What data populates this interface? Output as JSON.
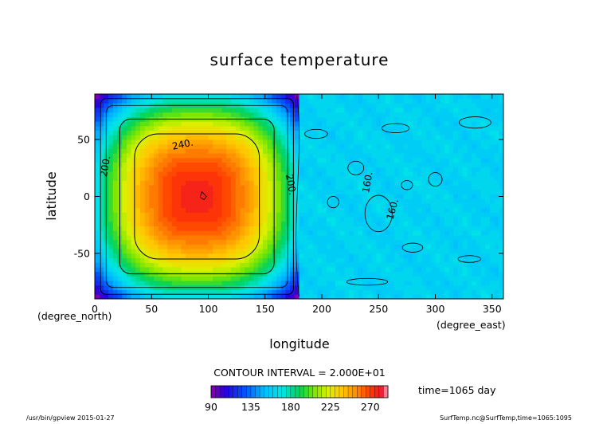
{
  "chart_data": {
    "type": "heatmap",
    "title": "surface temperature",
    "xlabel": "longitude",
    "ylabel": "latitude",
    "x_units": "(degree_east)",
    "y_units": "(degree_north)",
    "xlim": [
      0,
      360
    ],
    "ylim": [
      -90,
      90
    ],
    "x_ticks": [
      "0",
      "50",
      "100",
      "150",
      "200",
      "250",
      "300",
      "350"
    ],
    "y_ticks": [
      "50",
      "0",
      "-50"
    ],
    "contour_interval_text": "CONTOUR INTERVAL = 2.000E+01",
    "contour_labels": [
      "240.",
      "200.",
      "200.",
      "160.",
      "160."
    ],
    "colorbar": {
      "min": 90,
      "max": 290,
      "step": 5,
      "tick_labels": [
        "90",
        "135",
        "180",
        "225",
        "270"
      ]
    },
    "field": {
      "continent_lon_range": [
        0,
        180
      ],
      "hot_center": {
        "lon": 90,
        "lat": 0,
        "temp": 278
      },
      "continent_edge_temp": 165,
      "ocean_temp": 160
    }
  },
  "annotations": {
    "time": "time=1065 day",
    "footer_left": "/usr/bin/gpview  2015-01-27",
    "footer_right": "SurfTemp.nc@SurfTemp,time=1065:1095"
  }
}
